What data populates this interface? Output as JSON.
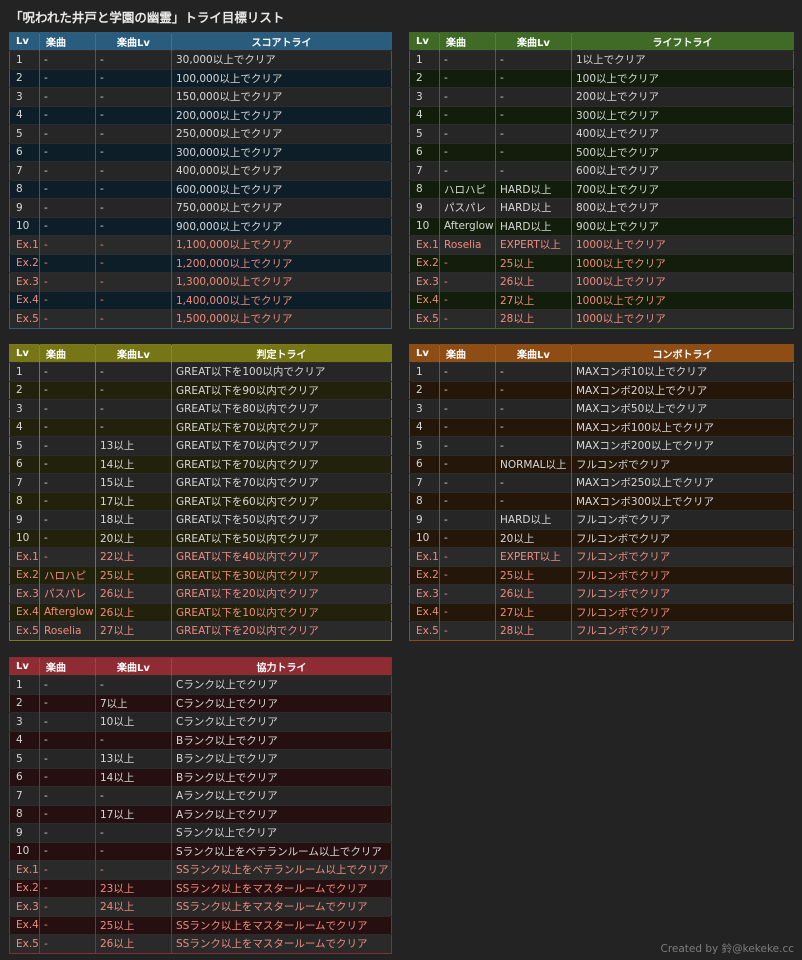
{
  "title": "「呪われた井戸と学園の幽霊」トライ目標リスト",
  "credit": "Created by 鈴@kekeke.cc",
  "tables": [
    {
      "id": "t-score",
      "name": "score-try-table",
      "headers": [
        "Lv",
        "楽曲",
        "楽曲Lv",
        "スコアトライ"
      ],
      "colwidths": [
        30,
        56,
        76,
        220
      ],
      "rows": [
        [
          "1",
          "-",
          "-",
          "30,000以上でクリア"
        ],
        [
          "2",
          "-",
          "-",
          "100,000以上でクリア"
        ],
        [
          "3",
          "-",
          "-",
          "150,000以上でクリア"
        ],
        [
          "4",
          "-",
          "-",
          "200,000以上でクリア"
        ],
        [
          "5",
          "-",
          "-",
          "250,000以上でクリア"
        ],
        [
          "6",
          "-",
          "-",
          "300,000以上でクリア"
        ],
        [
          "7",
          "-",
          "-",
          "400,000以上でクリア"
        ],
        [
          "8",
          "-",
          "-",
          "600,000以上でクリア"
        ],
        [
          "9",
          "-",
          "-",
          "750,000以上でクリア"
        ],
        [
          "10",
          "-",
          "-",
          "900,000以上でクリア"
        ],
        [
          "Ex.1",
          "-",
          "-",
          "1,100,000以上でクリア"
        ],
        [
          "Ex.2",
          "-",
          "-",
          "1,200,000以上でクリア"
        ],
        [
          "Ex.3",
          "-",
          "-",
          "1,300,000以上でクリア"
        ],
        [
          "Ex.4",
          "-",
          "-",
          "1,400,000以上でクリア"
        ],
        [
          "Ex.5",
          "-",
          "-",
          "1,500,000以上でクリア"
        ]
      ]
    },
    {
      "id": "t-life",
      "name": "life-try-table",
      "headers": [
        "Lv",
        "楽曲",
        "楽曲Lv",
        "ライフトライ"
      ],
      "colwidths": [
        30,
        56,
        76,
        222
      ],
      "rows": [
        [
          "1",
          "-",
          "-",
          "1以上でクリア"
        ],
        [
          "2",
          "-",
          "-",
          "100以上でクリア"
        ],
        [
          "3",
          "-",
          "-",
          "200以上でクリア"
        ],
        [
          "4",
          "-",
          "-",
          "300以上でクリア"
        ],
        [
          "5",
          "-",
          "-",
          "400以上でクリア"
        ],
        [
          "6",
          "-",
          "-",
          "500以上でクリア"
        ],
        [
          "7",
          "-",
          "-",
          "600以上でクリア"
        ],
        [
          "8",
          "ハロハピ",
          "HARD以上",
          "700以上でクリア"
        ],
        [
          "9",
          "パスパレ",
          "HARD以上",
          "800以上でクリア"
        ],
        [
          "10",
          "Afterglow",
          "HARD以上",
          "900以上でクリア"
        ],
        [
          "Ex.1",
          "Roselia",
          "EXPERT以上",
          "1000以上でクリア"
        ],
        [
          "Ex.2",
          "-",
          "25以上",
          "1000以上でクリア"
        ],
        [
          "Ex.3",
          "-",
          "26以上",
          "1000以上でクリア"
        ],
        [
          "Ex.4",
          "-",
          "27以上",
          "1000以上でクリア"
        ],
        [
          "Ex.5",
          "-",
          "28以上",
          "1000以上でクリア"
        ]
      ]
    },
    {
      "id": "t-judge",
      "name": "judge-try-table",
      "headers": [
        "Lv",
        "楽曲",
        "楽曲Lv",
        "判定トライ"
      ],
      "colwidths": [
        30,
        56,
        76,
        220
      ],
      "rows": [
        [
          "1",
          "-",
          "-",
          "GREAT以下を100以内でクリア"
        ],
        [
          "2",
          "-",
          "-",
          "GREAT以下を90以内でクリア"
        ],
        [
          "3",
          "-",
          "-",
          "GREAT以下を80以内でクリア"
        ],
        [
          "4",
          "-",
          "-",
          "GREAT以下を70以内でクリア"
        ],
        [
          "5",
          "-",
          "13以上",
          "GREAT以下を70以内でクリア"
        ],
        [
          "6",
          "-",
          "14以上",
          "GREAT以下を70以内でクリア"
        ],
        [
          "7",
          "-",
          "15以上",
          "GREAT以下を70以内でクリア"
        ],
        [
          "8",
          "-",
          "17以上",
          "GREAT以下を60以内でクリア"
        ],
        [
          "9",
          "-",
          "18以上",
          "GREAT以下を50以内でクリア"
        ],
        [
          "10",
          "-",
          "20以上",
          "GREAT以下を50以内でクリア"
        ],
        [
          "Ex.1",
          "-",
          "22以上",
          "GREAT以下を40以内でクリア"
        ],
        [
          "Ex.2",
          "ハロハピ",
          "25以上",
          "GREAT以下を30以内でクリア"
        ],
        [
          "Ex.3",
          "パスパレ",
          "26以上",
          "GREAT以下を20以内でクリア"
        ],
        [
          "Ex.4",
          "Afterglow",
          "26以上",
          "GREAT以下を10以内でクリア"
        ],
        [
          "Ex.5",
          "Roselia",
          "27以上",
          "GREAT以下を20以内でクリア"
        ]
      ]
    },
    {
      "id": "t-combo",
      "name": "combo-try-table",
      "headers": [
        "Lv",
        "楽曲",
        "楽曲Lv",
        "コンボトライ"
      ],
      "colwidths": [
        30,
        56,
        76,
        222
      ],
      "rows": [
        [
          "1",
          "-",
          "-",
          "MAXコンボ10以上でクリア"
        ],
        [
          "2",
          "-",
          "-",
          "MAXコンボ20以上でクリア"
        ],
        [
          "3",
          "-",
          "-",
          "MAXコンボ50以上でクリア"
        ],
        [
          "4",
          "-",
          "-",
          "MAXコンボ100以上でクリア"
        ],
        [
          "5",
          "-",
          "-",
          "MAXコンボ200以上でクリア"
        ],
        [
          "6",
          "-",
          "NORMAL以上",
          "フルコンボでクリア"
        ],
        [
          "7",
          "-",
          "-",
          "MAXコンボ250以上でクリア"
        ],
        [
          "8",
          "-",
          "-",
          "MAXコンボ300以上でクリア"
        ],
        [
          "9",
          "-",
          "HARD以上",
          "フルコンボでクリア"
        ],
        [
          "10",
          "-",
          "20以上",
          "フルコンボでクリア"
        ],
        [
          "Ex.1",
          "-",
          "EXPERT以上",
          "フルコンボでクリア"
        ],
        [
          "Ex.2",
          "-",
          "25以上",
          "フルコンボでクリア"
        ],
        [
          "Ex.3",
          "-",
          "26以上",
          "フルコンボでクリア"
        ],
        [
          "Ex.4",
          "-",
          "27以上",
          "フルコンボでクリア"
        ],
        [
          "Ex.5",
          "-",
          "28以上",
          "フルコンボでクリア"
        ]
      ]
    },
    {
      "id": "t-coop",
      "name": "coop-try-table",
      "headers": [
        "Lv",
        "楽曲",
        "楽曲Lv",
        "協力トライ"
      ],
      "colwidths": [
        30,
        56,
        76,
        220
      ],
      "rows": [
        [
          "1",
          "-",
          "-",
          "Cランク以上でクリア"
        ],
        [
          "2",
          "-",
          "7以上",
          "Cランク以上でクリア"
        ],
        [
          "3",
          "-",
          "10以上",
          "Cランク以上でクリア"
        ],
        [
          "4",
          "-",
          "-",
          "Bランク以上でクリア"
        ],
        [
          "5",
          "-",
          "13以上",
          "Bランク以上でクリア"
        ],
        [
          "6",
          "-",
          "14以上",
          "Bランク以上でクリア"
        ],
        [
          "7",
          "-",
          "-",
          "Aランク以上でクリア"
        ],
        [
          "8",
          "-",
          "17以上",
          "Aランク以上でクリア"
        ],
        [
          "9",
          "-",
          "-",
          "Sランク以上でクリア"
        ],
        [
          "10",
          "-",
          "-",
          "Sランク以上をベテランルーム以上でクリア"
        ],
        [
          "Ex.1",
          "-",
          "-",
          "SSランク以上をベテランルーム以上でクリア"
        ],
        [
          "Ex.2",
          "-",
          "23以上",
          "SSランク以上をマスタールームでクリア"
        ],
        [
          "Ex.3",
          "-",
          "24以上",
          "SSランク以上をマスタールームでクリア"
        ],
        [
          "Ex.4",
          "-",
          "25以上",
          "SSランク以上をマスタールームでクリア"
        ],
        [
          "Ex.5",
          "-",
          "26以上",
          "SSランク以上をマスタールームでクリア"
        ]
      ]
    }
  ]
}
